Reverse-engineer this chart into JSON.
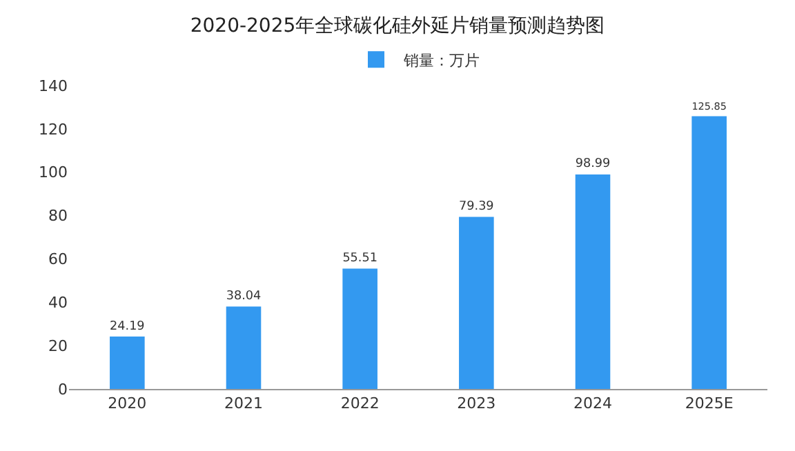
{
  "chart_data": {
    "type": "bar",
    "title": "2020-2025年全球碳化硅外延片销量预测趋势图",
    "categories": [
      "2020",
      "2021",
      "2022",
      "2023",
      "2024",
      "2025E"
    ],
    "series": [
      {
        "name": "销量：万片",
        "color": "#3399f0",
        "values": [
          24.19,
          38.04,
          55.51,
          79.39,
          98.99,
          125.85
        ]
      }
    ],
    "ylim": [
      0,
      140
    ],
    "yticks": [
      0,
      20,
      40,
      60,
      80,
      100,
      120,
      140
    ],
    "grid": false,
    "legend": "top",
    "data_labels": true
  }
}
